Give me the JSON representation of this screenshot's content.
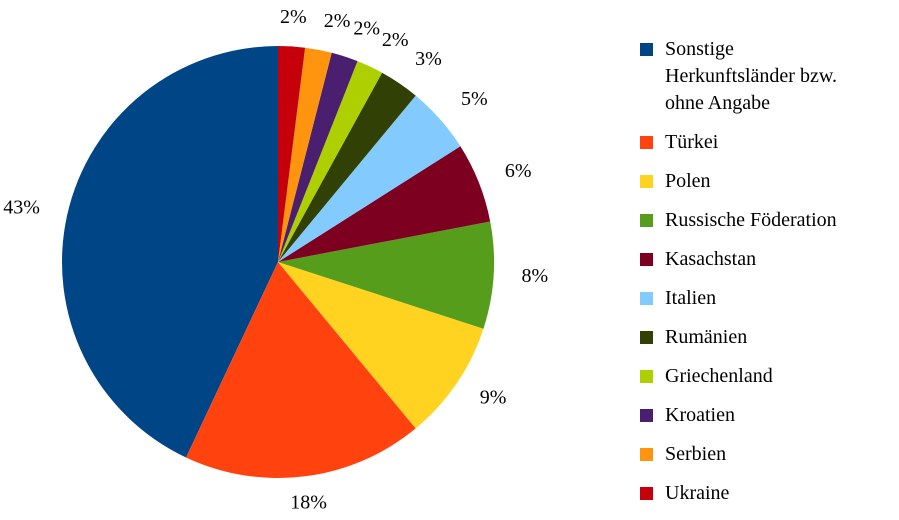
{
  "chart_data": {
    "type": "pie",
    "categories": [
      "Sonstige\nHerkunftsländer bzw.\nohne Angabe",
      "Türkei",
      "Polen",
      "Russische Föderation",
      "Kasachstan",
      "Italien",
      "Rumänien",
      "Griechenland",
      "Kroatien",
      "Serbien",
      "Ukraine"
    ],
    "values": [
      43,
      18,
      9,
      8,
      6,
      5,
      3,
      2,
      2,
      2,
      2
    ],
    "value_labels": [
      "43%",
      "18%",
      "9%",
      "8%",
      "6%",
      "5%",
      "3%",
      "2%",
      "2%",
      "2%",
      "2%"
    ],
    "colors": [
      "#004586",
      "#ff420e",
      "#ffd320",
      "#579d1c",
      "#7e0021",
      "#83caff",
      "#314004",
      "#aecf00",
      "#4b1f6f",
      "#ff950e",
      "#c5000b"
    ],
    "legend": "right"
  }
}
